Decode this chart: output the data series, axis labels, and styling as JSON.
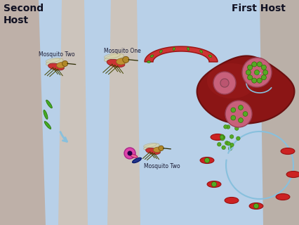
{
  "bg_color": "#aec3d4",
  "bg_center_color": "#bed3e4",
  "skin_color_left": "#c4b8ae",
  "skin_color_mid": "#ccc0b8",
  "second_host_label": "Second\nHost",
  "first_host_label": "First Host",
  "mosquito_two_top_label": "Mosquito Two",
  "mosquito_one_label": "Mosquito One",
  "mosquito_two_bot_label": "Mosquito Two",
  "arrow_color": "#88c0dd",
  "liver_color": "#8b1515",
  "liver_edge": "#6a1010",
  "liver_highlight": "#a82020",
  "cell_pink": "#c8607a",
  "cell_pink2": "#d47890",
  "green_color": "#55aa22",
  "green_edge": "#226600",
  "rbc_color": "#cc2222",
  "rbc_edge": "#991111",
  "blood_vessel_color": "#cc3333",
  "sporo_color": "#44aa22",
  "gam_pink": "#dd44aa",
  "gam_blue": "#223388",
  "gam_pink2": "#ee6699"
}
